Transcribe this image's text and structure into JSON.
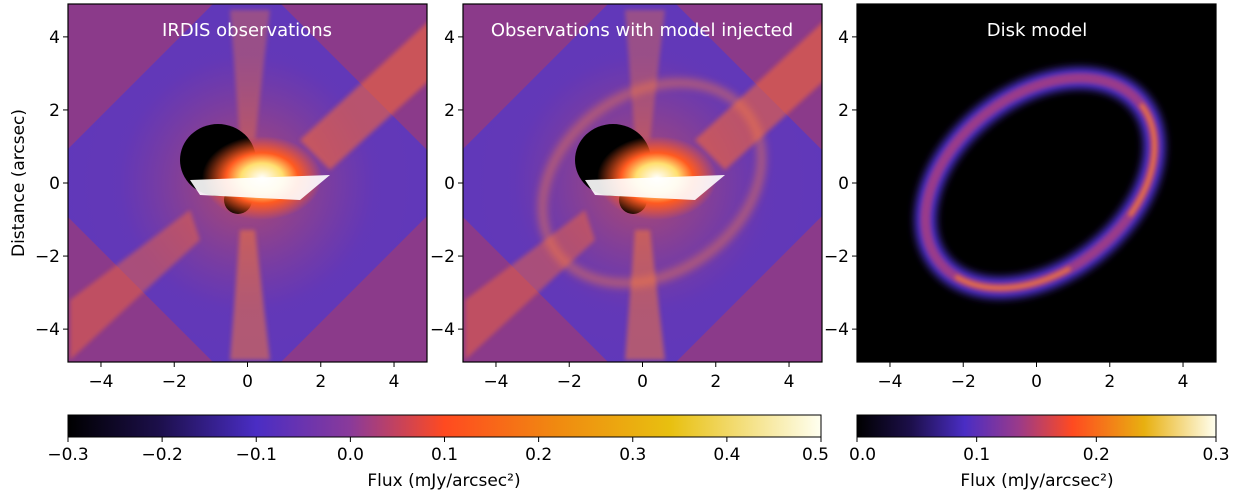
{
  "chart_data": [
    {
      "type": "heatmap",
      "title": "IRDIS observations",
      "ylabel": "Distance (arcsec)",
      "xlim": [
        -4.9,
        4.9
      ],
      "ylim": [
        -4.9,
        4.9
      ],
      "xticks": [
        -4,
        -2,
        0,
        2,
        4
      ],
      "yticks": [
        -4,
        -2,
        0,
        2,
        4
      ]
    },
    {
      "type": "heatmap",
      "title": "Observations with model injected",
      "xlim": [
        -4.9,
        4.9
      ],
      "ylim": [
        -4.9,
        4.9
      ],
      "xticks": [
        -4,
        -2,
        0,
        2,
        4
      ],
      "yticks": [
        -4,
        -2,
        0,
        2,
        4
      ]
    },
    {
      "type": "heatmap",
      "title": "Disk model",
      "xlim": [
        -4.9,
        4.9
      ],
      "ylim": [
        -4.9,
        4.9
      ],
      "xticks": [
        -4,
        -2,
        0,
        2,
        4
      ],
      "yticks": [
        -4,
        -2,
        0,
        2,
        4
      ]
    }
  ],
  "colorbars": [
    {
      "label": "Flux (mJy/arcsec²)",
      "range": [
        -0.3,
        0.5
      ],
      "ticks": [
        -0.3,
        -0.2,
        -0.1,
        0.0,
        0.1,
        0.2,
        0.3,
        0.4,
        0.5
      ],
      "tick_labels": [
        "−0.3",
        "−0.2",
        "−0.1",
        "0.0",
        "0.1",
        "0.2",
        "0.3",
        "0.4",
        "0.5"
      ]
    },
    {
      "label": "Flux (mJy/arcsec²)",
      "range": [
        0.0,
        0.3
      ],
      "ticks": [
        0.0,
        0.1,
        0.2,
        0.3
      ],
      "tick_labels": [
        "0.0",
        "0.1",
        "0.2",
        "0.3"
      ]
    }
  ],
  "colors": {
    "colormap": [
      "#000000",
      "#1c0f4a",
      "#4a2dc4",
      "#8a3a9a",
      "#ff4a20",
      "#f08a10",
      "#e8c010",
      "#fffff0"
    ],
    "background": "#8b3a8a"
  }
}
